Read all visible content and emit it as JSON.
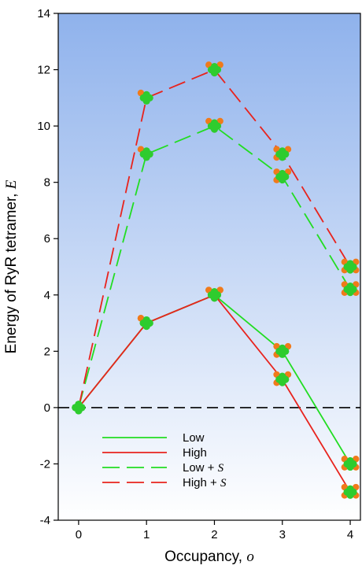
{
  "chart_data": {
    "type": "line",
    "x": [
      0,
      1,
      2,
      3,
      4
    ],
    "xlabel": "Occupancy, ",
    "xlabel_var": "o",
    "ylabel": "Energy of RyR tetramer, ",
    "ylabel_var": "E",
    "xlim": [
      -0.3,
      4.15
    ],
    "ylim": [
      -4,
      14
    ],
    "xticks": [
      0,
      1,
      2,
      3,
      4
    ],
    "yticks": [
      -4,
      -2,
      0,
      2,
      4,
      6,
      8,
      10,
      12,
      14
    ],
    "grid": false,
    "legend_position": "bottom-center",
    "reference_line": {
      "y": 0,
      "style": "dashed",
      "color": "#000000"
    },
    "series": [
      {
        "name": "Low",
        "legend_suffix": "",
        "color": "#22dd22",
        "dash": false,
        "values": [
          0,
          3,
          4,
          2,
          -2
        ]
      },
      {
        "name": "High",
        "legend_suffix": "",
        "color": "#e8231d",
        "dash": false,
        "values": [
          0,
          3,
          4,
          1,
          -3
        ]
      },
      {
        "name": "Low + ",
        "legend_suffix": "S",
        "color": "#22dd22",
        "dash": true,
        "values": [
          0,
          9,
          10,
          8.2,
          4.2
        ]
      },
      {
        "name": "High + ",
        "legend_suffix": "S",
        "color": "#e8231d",
        "dash": true,
        "values": [
          0,
          11,
          12,
          9,
          5
        ]
      }
    ],
    "colors": {
      "background_top": "#8fb2ec",
      "background_bottom": "#ffffff",
      "marker_primary": "#2ecc2e",
      "marker_secondary": "#f07a1a"
    }
  }
}
